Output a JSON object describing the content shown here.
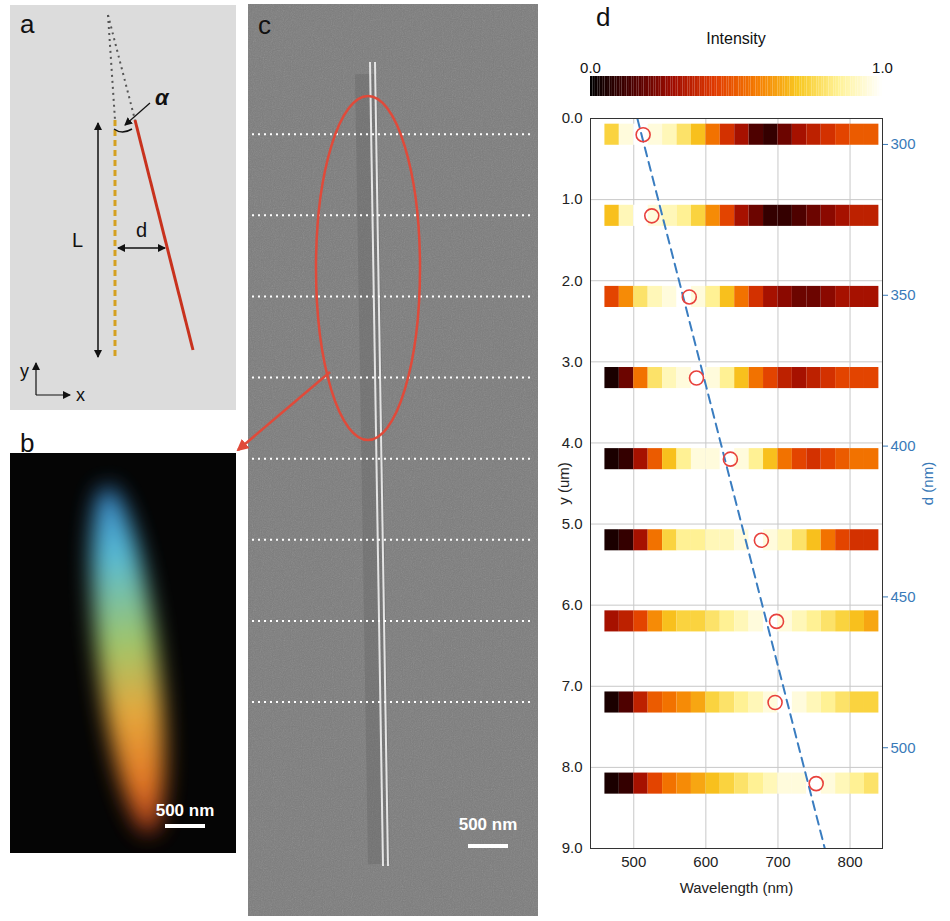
{
  "panel_a": {
    "label": "a",
    "length_label": "L",
    "offset_label": "d",
    "angle_label": "α",
    "x_axis": "x",
    "y_axis": "y"
  },
  "panel_b": {
    "label": "b",
    "scale_bar": "500 nm"
  },
  "panel_c": {
    "label": "c",
    "scale_bar": "500 nm"
  },
  "chart_data": {
    "type": "heatmap",
    "panel_label": "d",
    "x_label": "Wavelength (nm)",
    "y_label": "y (um)",
    "y2_label": "d (nm)",
    "xlim": [
      440,
      845
    ],
    "xticks": [
      500,
      600,
      700,
      800
    ],
    "ylim": [
      0,
      9
    ],
    "yticks": [
      0,
      1,
      2,
      3,
      4,
      5,
      6,
      7,
      8,
      9
    ],
    "y2lim": [
      291.4,
      533.4
    ],
    "y2ticks": [
      300,
      350,
      400,
      450,
      500
    ],
    "grid": true,
    "colorbar": {
      "label": "Intensity",
      "range": [
        0,
        1
      ],
      "ticks": [
        0,
        1
      ]
    },
    "wavelength_edges": [
      460,
      480,
      500,
      520,
      540,
      560,
      580,
      600,
      620,
      640,
      660,
      680,
      700,
      720,
      740,
      760,
      780,
      800,
      820,
      840
    ],
    "rows": [
      {
        "y": 0.2,
        "intensity": [
          0.75,
          0.95,
          1.0,
          0.95,
          0.9,
          0.8,
          0.7,
          0.55,
          0.4,
          0.3,
          0.15,
          0.1,
          0.2,
          0.3,
          0.35,
          0.4,
          0.45,
          0.5,
          0.5
        ]
      },
      {
        "y": 1.2,
        "intensity": [
          0.7,
          0.9,
          1.0,
          0.95,
          0.9,
          0.85,
          0.75,
          0.6,
          0.45,
          0.3,
          0.2,
          0.1,
          0.1,
          0.15,
          0.2,
          0.25,
          0.3,
          0.35,
          0.35
        ]
      },
      {
        "y": 2.2,
        "intensity": [
          0.45,
          0.6,
          0.8,
          0.9,
          0.95,
          1.0,
          0.95,
          0.85,
          0.7,
          0.55,
          0.4,
          0.3,
          0.25,
          0.2,
          0.2,
          0.25,
          0.3,
          0.3,
          0.3
        ]
      },
      {
        "y": 3.2,
        "intensity": [
          0.05,
          0.2,
          0.55,
          0.8,
          0.9,
          0.95,
          1.0,
          0.95,
          0.85,
          0.7,
          0.55,
          0.45,
          0.35,
          0.3,
          0.35,
          0.4,
          0.45,
          0.45,
          0.45
        ]
      },
      {
        "y": 4.2,
        "intensity": [
          0.05,
          0.1,
          0.3,
          0.5,
          0.7,
          0.85,
          0.95,
          0.95,
          1.0,
          0.95,
          0.85,
          0.7,
          0.55,
          0.45,
          0.4,
          0.45,
          0.5,
          0.55,
          0.55
        ]
      },
      {
        "y": 5.2,
        "intensity": [
          0.05,
          0.1,
          0.3,
          0.55,
          0.75,
          0.85,
          0.85,
          0.9,
          0.9,
          0.95,
          1.0,
          0.95,
          0.9,
          0.8,
          0.7,
          0.55,
          0.45,
          0.4,
          0.4
        ]
      },
      {
        "y": 6.2,
        "intensity": [
          0.3,
          0.35,
          0.45,
          0.6,
          0.7,
          0.75,
          0.75,
          0.8,
          0.85,
          0.9,
          0.95,
          1.0,
          0.95,
          0.9,
          0.85,
          0.8,
          0.75,
          0.7,
          0.65
        ]
      },
      {
        "y": 7.2,
        "intensity": [
          0.05,
          0.15,
          0.35,
          0.5,
          0.55,
          0.6,
          0.65,
          0.75,
          0.8,
          0.85,
          0.9,
          0.95,
          1.0,
          0.95,
          0.9,
          0.85,
          0.8,
          0.75,
          0.75
        ]
      },
      {
        "y": 8.2,
        "intensity": [
          0.05,
          0.1,
          0.3,
          0.45,
          0.55,
          0.6,
          0.65,
          0.7,
          0.75,
          0.8,
          0.85,
          0.9,
          0.95,
          0.95,
          1.0,
          0.95,
          0.9,
          0.85,
          0.8
        ]
      }
    ],
    "peaks": {
      "marker": "circle",
      "color": "#e8413c",
      "wavelength": [
        513,
        525,
        577,
        587,
        634,
        677,
        698,
        696,
        753
      ],
      "y": [
        0.2,
        1.2,
        2.2,
        3.2,
        4.2,
        5.2,
        6.2,
        7.2,
        8.2
      ]
    },
    "fit_line": {
      "x": [
        505,
        765
      ],
      "y": [
        0,
        9
      ],
      "line_style": "dashed",
      "color": "#3a7dc0"
    }
  }
}
